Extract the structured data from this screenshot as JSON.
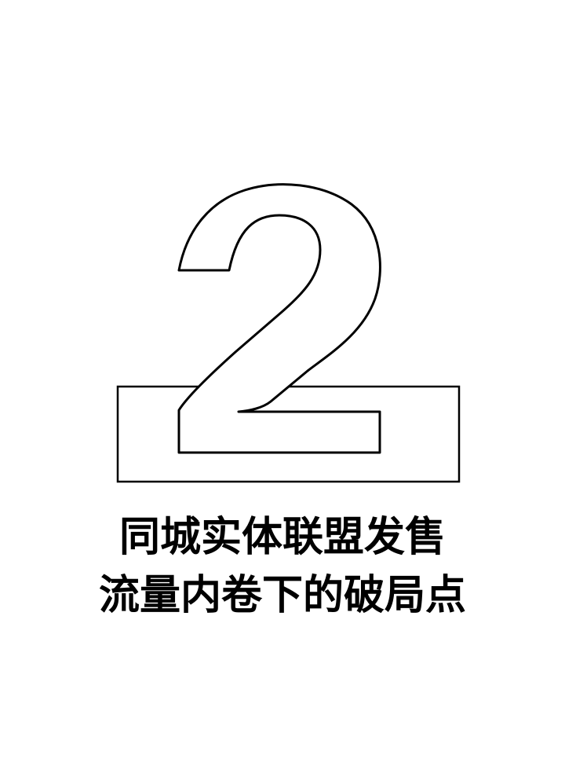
{
  "section": {
    "number": "2",
    "title_lines": [
      "同城实体联盟发售",
      "流量内卷下的破局点"
    ]
  },
  "colors": {
    "background": "#ffffff",
    "ink": "#000000"
  }
}
